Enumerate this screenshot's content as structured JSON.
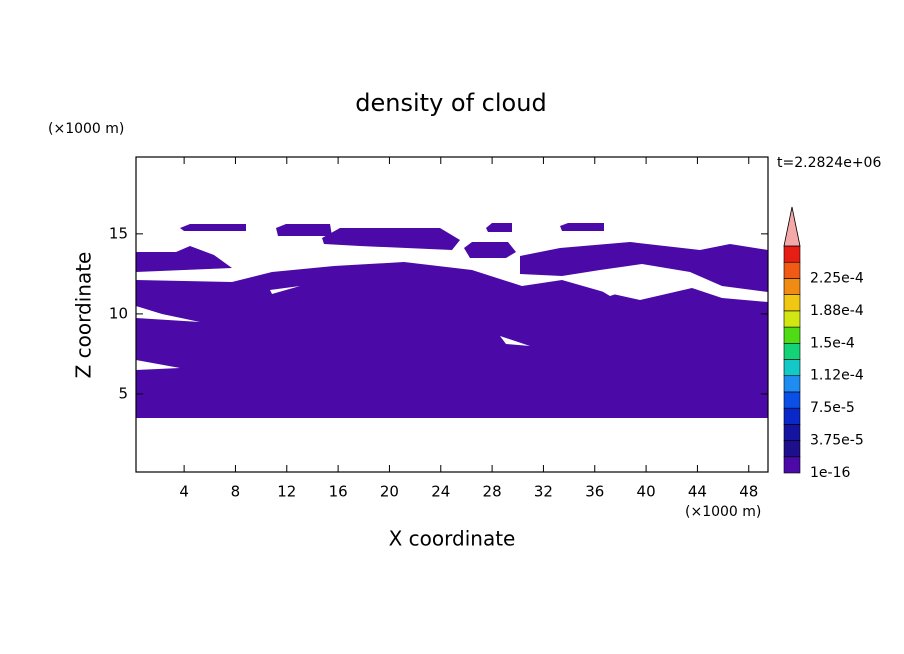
{
  "chart_data": {
    "type": "contour",
    "title": "density of cloud",
    "x_label": "X coordinate",
    "y_label": "Z coordinate",
    "x_unit": "(×1000 m)",
    "y_unit": "(×1000 m)",
    "time_label": "t=2.2824e+06",
    "xlim": [
      0.25,
      49.5
    ],
    "ylim": [
      0.125,
      19.8
    ],
    "xticks": [
      4,
      8,
      12,
      16,
      20,
      24,
      28,
      32,
      36,
      40,
      44,
      48
    ],
    "yticks": [
      5,
      10,
      15
    ],
    "colorbar": {
      "colors": [
        "#4b0aa8",
        "#1e0f8c",
        "#1414a0",
        "#0a28c8",
        "#0a50e6",
        "#1e8cf0",
        "#14c8c8",
        "#14d278",
        "#50dc14",
        "#d2e614",
        "#f0c814",
        "#f08c14",
        "#f05a14",
        "#e61e14"
      ],
      "over_color": "#f4a8a8",
      "labels": [
        {
          "value": 1e-16,
          "label": "1e-16"
        },
        {
          "value": 3.75e-05,
          "label": "3.75e-5"
        },
        {
          "value": 7.5e-05,
          "label": "7.5e-5"
        },
        {
          "value": 0.000112,
          "label": "1.12e-4"
        },
        {
          "value": 0.00015,
          "label": "1.5e-4"
        },
        {
          "value": 0.000188,
          "label": "1.88e-4"
        },
        {
          "value": 0.000225,
          "label": "2.25e-4"
        }
      ]
    }
  }
}
